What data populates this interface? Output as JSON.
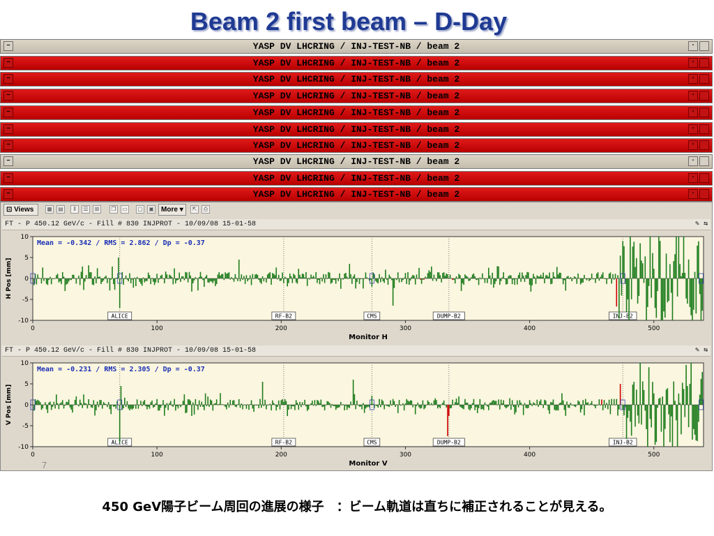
{
  "slide": {
    "title": "Beam 2 first beam – D-Day",
    "caption": "450 GeV陽子ビーム周回の進展の様子　：ビーム軌道は直ちに補正されることが見える。",
    "page_number": "7"
  },
  "windows": [
    {
      "title": "YASP DV LHCRING / INJ-TEST-NB / beam 2",
      "style": "gray"
    },
    {
      "title": "YASP DV LHCRING / INJ-TEST-NB / beam 2",
      "style": "red"
    },
    {
      "title": "YASP DV LHCRING / INJ-TEST-NB / beam 2",
      "style": "red"
    },
    {
      "title": "YASP DV LHCRING / INJ-TEST-NB / beam 2",
      "style": "red"
    },
    {
      "title": "YASP DV LHCRING / INJ-TEST-NB / beam 2",
      "style": "red"
    },
    {
      "title": "YASP DV LHCRING / INJ-TEST-NB / beam 2",
      "style": "red"
    },
    {
      "title": "YASP DV LHCRING / INJ-TEST-NB / beam 2",
      "style": "red"
    },
    {
      "title": "YASP DV LHCRING / INJ-TEST-NB / beam 2",
      "style": "gray"
    },
    {
      "title": "YASP DV LHCRING / INJ-TEST-NB / beam 2",
      "style": "red"
    },
    {
      "title": "YASP DV LHCRING / INJ-TEST-NB / beam 2",
      "style": "red"
    }
  ],
  "toolbar": {
    "views_label": "Views",
    "more_label": "More"
  },
  "colors": {
    "title": "#1f3a93",
    "window_red": "#cc0000",
    "plot_bg": "#fbf6df",
    "bar_green": "#1e7d1e",
    "bar_red": "#cc0000",
    "stat_text": "#1a2fb5"
  },
  "chart_data": [
    {
      "type": "bar",
      "header": "FT - P 450.12 GeV/c - Fill # 830 INJPROT - 10/09/08 15-01-58",
      "stats": "Mean =  -0.342 / RMS =   2.862 / Dp =  -0.37",
      "xlabel": "Monitor H",
      "ylabel": "H Pos [mm]",
      "xlim": [
        0,
        540
      ],
      "ylim": [
        -10,
        10
      ],
      "xticks": [
        0,
        100,
        200,
        300,
        400,
        500
      ],
      "yticks": [
        -10,
        -5,
        0,
        5,
        10
      ],
      "markers": [
        {
          "label": "ALICE",
          "x": 70
        },
        {
          "label": "RF-B2",
          "x": 202
        },
        {
          "label": "CMS",
          "x": 273
        },
        {
          "label": "DUMP-B2",
          "x": 335
        },
        {
          "label": "INJ-B2",
          "x": 475
        }
      ],
      "red_monitors": [
        312,
        315,
        338,
        470
      ],
      "seed": 17,
      "base_amplitude": 1.6,
      "large_region_start": 470,
      "large_amplitude": 11,
      "spikes": [
        {
          "x": 69,
          "value": 5
        },
        {
          "x": 70,
          "value": -7
        },
        {
          "x": 166,
          "value": 4.5
        },
        {
          "x": 290,
          "value": -6.5
        },
        {
          "x": 255,
          "value": 3.5
        },
        {
          "x": 345,
          "value": -3
        }
      ]
    },
    {
      "type": "bar",
      "header": "FT - P 450.12 GeV/c - Fill # 830 INJPROT - 10/09/08 15-01-58",
      "stats": "Mean =  -0.231 / RMS =   2.305 / Dp =  -0.37",
      "xlabel": "Monitor V",
      "ylabel": "V Pos [mm]",
      "xlim": [
        0,
        540
      ],
      "ylim": [
        -10,
        10
      ],
      "xticks": [
        0,
        100,
        200,
        300,
        400,
        500
      ],
      "yticks": [
        -10,
        -5,
        0,
        5,
        10
      ],
      "markers": [
        {
          "label": "ALICE",
          "x": 70
        },
        {
          "label": "RF-B2",
          "x": 202
        },
        {
          "label": "CMS",
          "x": 273
        },
        {
          "label": "DUMP-B2",
          "x": 335
        },
        {
          "label": "INJ-B2",
          "x": 475
        }
      ],
      "red_monitors": [
        334,
        335,
        458,
        473
      ],
      "seed": 41,
      "base_amplitude": 1.4,
      "large_region_start": 478,
      "large_amplitude": 10,
      "spikes": [
        {
          "x": 71,
          "value": 4.5
        },
        {
          "x": 70,
          "value": -9
        },
        {
          "x": 185,
          "value": 5.5
        },
        {
          "x": 258,
          "value": 6
        },
        {
          "x": 334,
          "value": -7.5
        },
        {
          "x": 473,
          "value": 5
        }
      ]
    }
  ]
}
